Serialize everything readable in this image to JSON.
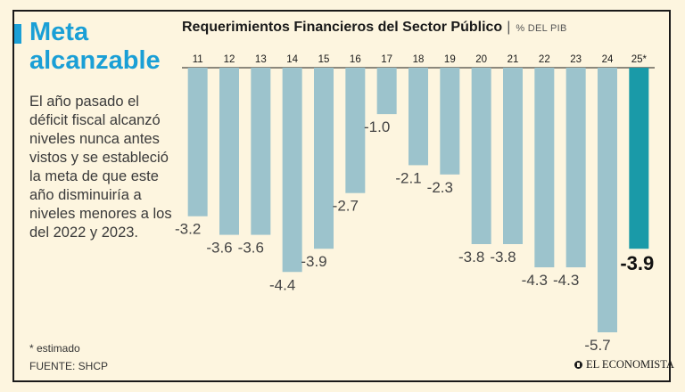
{
  "headline": "Meta alcanzable",
  "intro": "El año pasado el déficit fiscal alcanzó niveles nunca antes vistos y se estableció la meta de que este año disminuiría a niveles menores a los del 2022 y 2023.",
  "footnote": "* estimado",
  "source": "FUENTE: SHCP",
  "logo_text": "EL ECONOMISTA",
  "colors": {
    "accent": "#1a9fd6",
    "bar": "#9cc3cc",
    "highlight": "#1a9aa8",
    "background": "#fdf5df"
  },
  "chart_data": {
    "type": "bar",
    "title": "Requerimientos Financieros del Sector Público",
    "unit": "% DEL PIB",
    "categories": [
      "11",
      "12",
      "13",
      "14",
      "15",
      "16",
      "17",
      "18",
      "19",
      "20",
      "21",
      "22",
      "23",
      "24",
      "25*"
    ],
    "values": [
      -3.2,
      -3.6,
      -3.6,
      -4.4,
      -3.9,
      -2.7,
      -1.0,
      -2.1,
      -2.3,
      -3.8,
      -3.8,
      -4.3,
      -4.3,
      -5.7,
      -3.9
    ],
    "labels": [
      "-3.2",
      "-3.6",
      "-3.6",
      "-4.4",
      "-3.9",
      "-2.7",
      "-1.0",
      "-2.1",
      "-2.3",
      "-3.8",
      "-3.8",
      "-4.3",
      "-4.3",
      "-5.7",
      "-3.9"
    ],
    "highlight_index": 14,
    "ylim": [
      -5.7,
      0
    ],
    "xlabel": "",
    "ylabel": ""
  }
}
